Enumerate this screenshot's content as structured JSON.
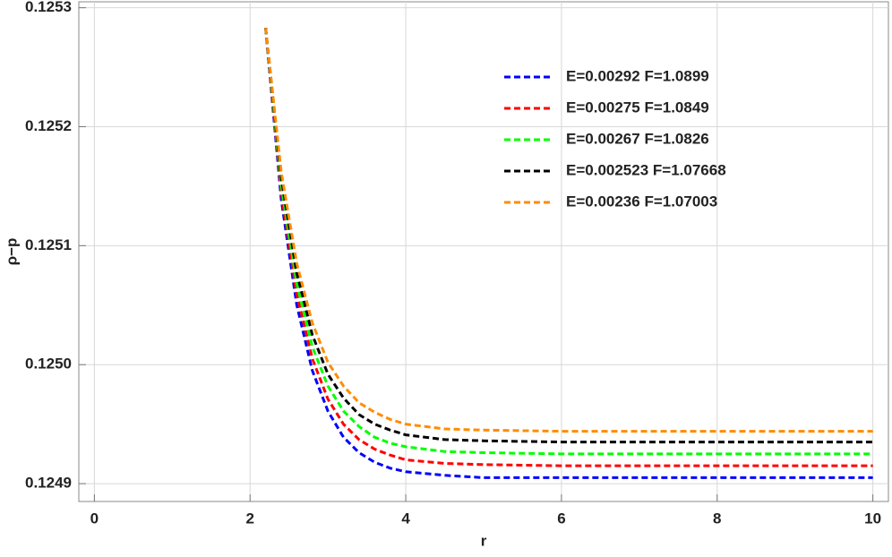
{
  "chart_data": {
    "type": "line",
    "x_label": "r",
    "y_label": "ρ−p",
    "x": [
      2.2,
      2.4,
      2.6,
      2.8,
      3.0,
      3.2,
      3.4,
      3.6,
      3.8,
      4.0,
      4.5,
      5,
      6,
      8,
      10
    ],
    "series": [
      {
        "name": "E=0.00292 F=1.0899",
        "color": "#0000ff",
        "values": [
          0.125283,
          0.125139,
          0.12505,
          0.124995,
          0.124961,
          0.124939,
          0.124926,
          0.124918,
          0.124913,
          0.12491,
          0.124907,
          0.124905,
          0.124905,
          0.124905,
          0.124905
        ]
      },
      {
        "name": "E=0.00275 F=1.0849",
        "color": "#ff0000",
        "values": [
          0.125283,
          0.125145,
          0.125059,
          0.125005,
          0.124971,
          0.12495,
          0.124937,
          0.124929,
          0.124924,
          0.12492,
          0.124917,
          0.124916,
          0.124915,
          0.124915,
          0.124915
        ]
      },
      {
        "name": "E=0.00267 F=1.0826",
        "color": "#00ff00",
        "values": [
          0.125283,
          0.125151,
          0.125068,
          0.125015,
          0.124982,
          0.124961,
          0.124948,
          0.124939,
          0.124934,
          0.124931,
          0.124927,
          0.124926,
          0.124925,
          0.124925,
          0.124925
        ]
      },
      {
        "name": "E=0.002523 F=1.07668",
        "color": "#000000",
        "values": [
          0.125283,
          0.125157,
          0.125077,
          0.125025,
          0.124992,
          0.124972,
          0.124958,
          0.12495,
          0.124945,
          0.124941,
          0.124937,
          0.124936,
          0.124935,
          0.124935,
          0.124935
        ]
      },
      {
        "name": "E=0.00236 F=1.07003",
        "color": "#ff8c00",
        "values": [
          0.125283,
          0.125162,
          0.125085,
          0.125035,
          0.125002,
          0.124982,
          0.124968,
          0.12496,
          0.124954,
          0.12495,
          0.124946,
          0.124945,
          0.124944,
          0.124944,
          0.124944
        ]
      }
    ],
    "xlim": [
      -0.2,
      10.2
    ],
    "xticks": [
      0,
      2,
      4,
      6,
      8,
      10
    ],
    "ylim": [
      0.124885,
      0.125305
    ],
    "yticks": [
      {
        "value": 0.1249,
        "label": "0.1249"
      },
      {
        "value": 0.125,
        "label": "0.1250"
      },
      0.1251,
      0.1252,
      0.1253
    ],
    "grid": true,
    "legend": "upper right",
    "line_style": "dashed"
  }
}
